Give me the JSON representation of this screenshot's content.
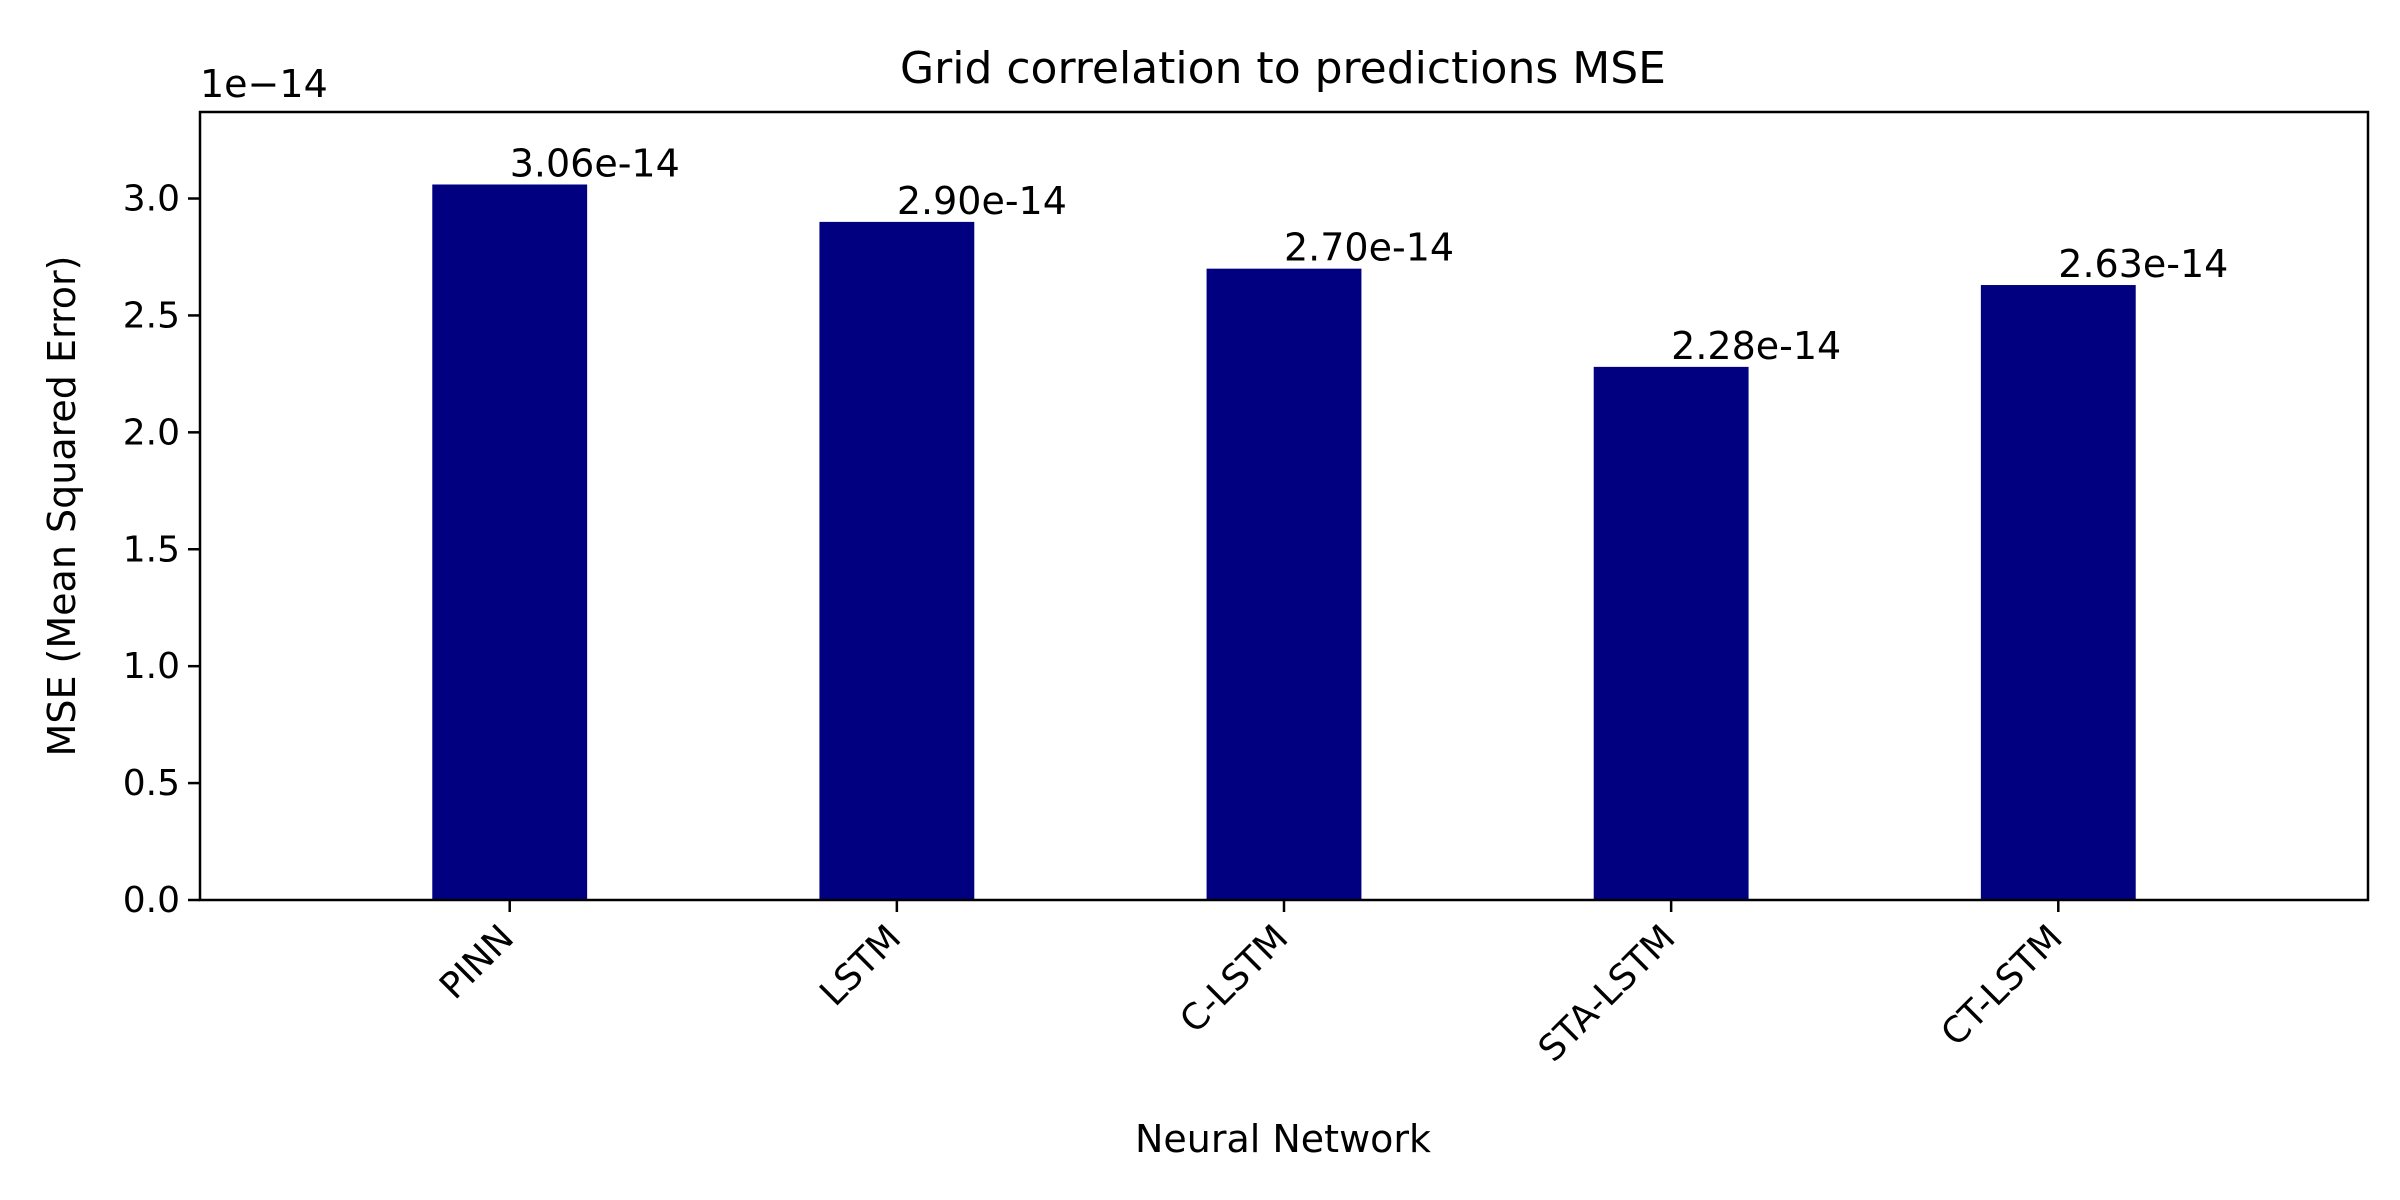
{
  "chart_data": {
    "type": "bar",
    "title": "Grid correlation to predictions MSE",
    "xlabel": "Neural Network",
    "ylabel": "MSE (Mean Squared Error)",
    "y_scale_label": "1e−14",
    "categories": [
      "PINN",
      "LSTM",
      "C-LSTM",
      "STA-LSTM",
      "CT-LSTM"
    ],
    "values": [
      3.06,
      2.9,
      2.7,
      2.28,
      2.63
    ],
    "data_labels": [
      "3.06e-14",
      "2.90e-14",
      "2.70e-14",
      "2.28e-14",
      "2.63e-14"
    ],
    "yticks": [
      "0.0",
      "0.5",
      "1.0",
      "1.5",
      "2.0",
      "2.5",
      "3.0"
    ],
    "ylim": [
      0,
      3.37
    ],
    "bar_color": "#000080",
    "grid": false,
    "legend": "none"
  }
}
